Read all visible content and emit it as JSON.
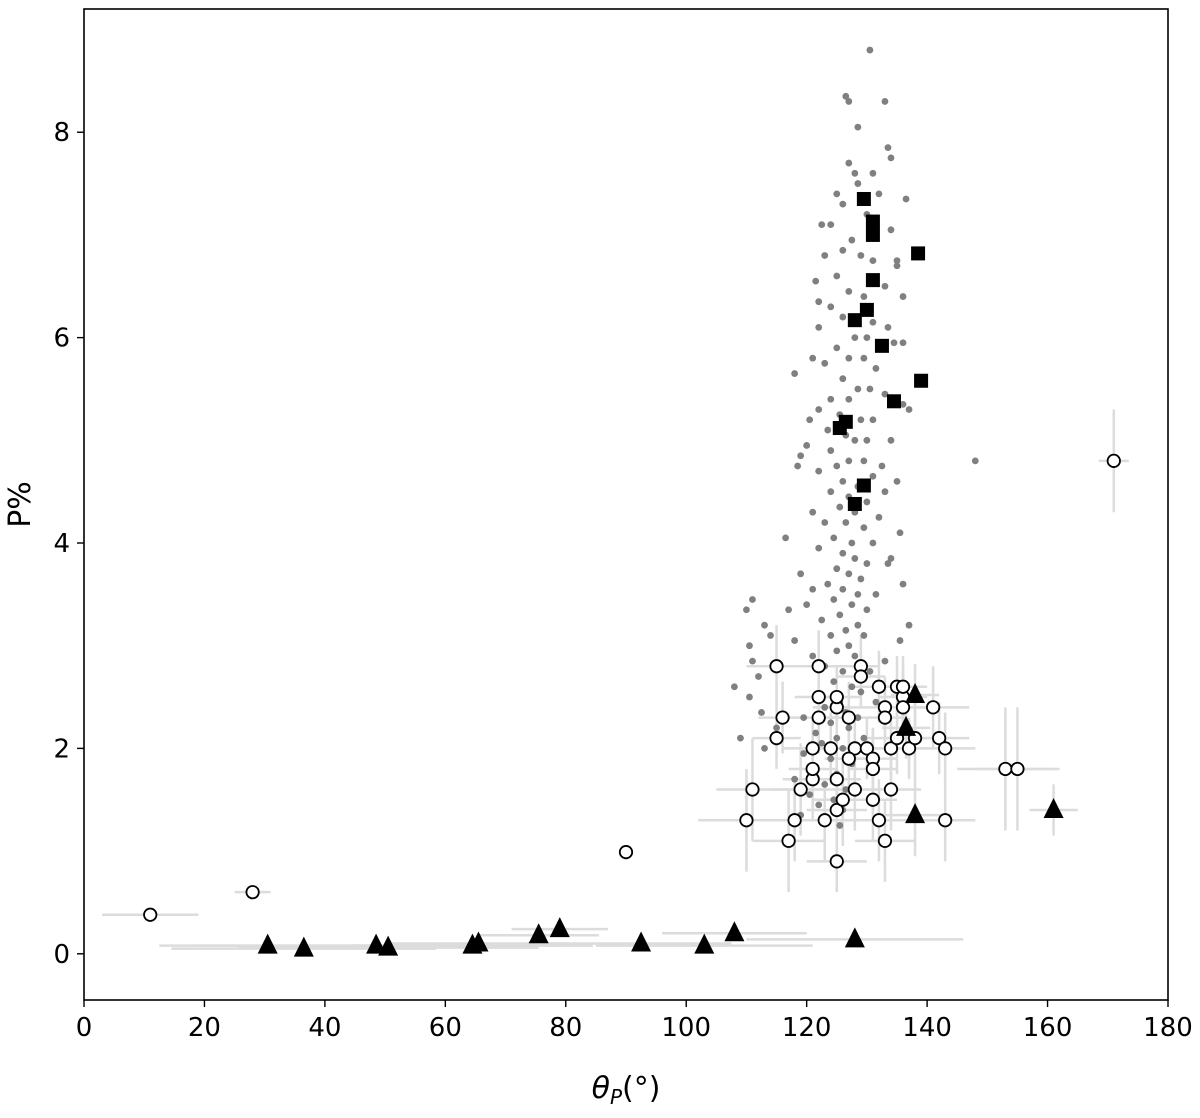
{
  "chart_data": {
    "type": "scatter",
    "title": "",
    "xlabel_main": "θ",
    "xlabel_sub": "P",
    "xlabel_tail": "(°)",
    "ylabel": "P%",
    "xlim": [
      0,
      180
    ],
    "ylim": [
      -0.45,
      9.2
    ],
    "xticks": [
      0,
      20,
      40,
      60,
      80,
      100,
      120,
      140,
      160,
      180
    ],
    "yticks": [
      0,
      2,
      4,
      6,
      8
    ],
    "grid": false,
    "colors": {
      "dots": "#808080",
      "errorbars": "#dcdcdc",
      "markers": "#000000"
    },
    "series": [
      {
        "marker": "dot",
        "points": [
          [
            130.5,
            8.8
          ],
          [
            126.5,
            8.35
          ],
          [
            127,
            8.3
          ],
          [
            133,
            8.3
          ],
          [
            128.5,
            8.05
          ],
          [
            133.5,
            7.85
          ],
          [
            134,
            7.75
          ],
          [
            127,
            7.7
          ],
          [
            131,
            7.6
          ],
          [
            128,
            7.6
          ],
          [
            128.5,
            7.5
          ],
          [
            125,
            7.4
          ],
          [
            132,
            7.4
          ],
          [
            136.5,
            7.35
          ],
          [
            126,
            7.3
          ],
          [
            130,
            7.2
          ],
          [
            124,
            7.1
          ],
          [
            134,
            7.05
          ],
          [
            122.5,
            7.1
          ],
          [
            127.5,
            6.95
          ],
          [
            126,
            6.85
          ],
          [
            129,
            6.8
          ],
          [
            131,
            6.75
          ],
          [
            135,
            6.7
          ],
          [
            125,
            6.6
          ],
          [
            133,
            6.5
          ],
          [
            127,
            6.45
          ],
          [
            129.5,
            6.4
          ],
          [
            136,
            6.4
          ],
          [
            124,
            6.3
          ],
          [
            126,
            6.2
          ],
          [
            131,
            6.15
          ],
          [
            133.5,
            6.1
          ],
          [
            122,
            6.1
          ],
          [
            128,
            6.0
          ],
          [
            130,
            6.0
          ],
          [
            134.5,
            5.95
          ],
          [
            125,
            5.9
          ],
          [
            127,
            5.8
          ],
          [
            129.5,
            5.8
          ],
          [
            121,
            5.8
          ],
          [
            123,
            5.75
          ],
          [
            131.5,
            5.7
          ],
          [
            118,
            5.65
          ],
          [
            126,
            5.6
          ],
          [
            128.5,
            5.5
          ],
          [
            130.5,
            5.5
          ],
          [
            133,
            5.45
          ],
          [
            124,
            5.4
          ],
          [
            127,
            5.4
          ],
          [
            136,
            5.35
          ],
          [
            122,
            5.3
          ],
          [
            125.5,
            5.25
          ],
          [
            129,
            5.2
          ],
          [
            131,
            5.2
          ],
          [
            123.5,
            5.1
          ],
          [
            126.5,
            5.05
          ],
          [
            128,
            5.0
          ],
          [
            130,
            5.0
          ],
          [
            134,
            5.0
          ],
          [
            120,
            4.95
          ],
          [
            124,
            4.9
          ],
          [
            119,
            4.85
          ],
          [
            127,
            4.8
          ],
          [
            129.5,
            4.8
          ],
          [
            125,
            4.75
          ],
          [
            122,
            4.7
          ],
          [
            131,
            4.65
          ],
          [
            126,
            4.6
          ],
          [
            128.5,
            4.55
          ],
          [
            133,
            4.5
          ],
          [
            124,
            4.5
          ],
          [
            127,
            4.45
          ],
          [
            130,
            4.4
          ],
          [
            125.5,
            4.35
          ],
          [
            121,
            4.3
          ],
          [
            128,
            4.3
          ],
          [
            132,
            4.25
          ],
          [
            123,
            4.2
          ],
          [
            126.5,
            4.2
          ],
          [
            129.5,
            4.15
          ],
          [
            135.5,
            4.1
          ],
          [
            124.5,
            4.05
          ],
          [
            127.5,
            4.0
          ],
          [
            131,
            4.0
          ],
          [
            122,
            3.95
          ],
          [
            126,
            3.9
          ],
          [
            128,
            3.85
          ],
          [
            130,
            3.8
          ],
          [
            133.5,
            3.8
          ],
          [
            116.5,
            4.05
          ],
          [
            125,
            3.75
          ],
          [
            127,
            3.7
          ],
          [
            129,
            3.65
          ],
          [
            123.5,
            3.6
          ],
          [
            126,
            3.55
          ],
          [
            128.5,
            3.5
          ],
          [
            131.5,
            3.5
          ],
          [
            124.5,
            3.45
          ],
          [
            120,
            3.4
          ],
          [
            127.5,
            3.4
          ],
          [
            130,
            3.35
          ],
          [
            125.5,
            3.3
          ],
          [
            122.5,
            3.25
          ],
          [
            128.5,
            3.2
          ],
          [
            126.5,
            3.15
          ],
          [
            124,
            3.1
          ],
          [
            129.5,
            3.1
          ],
          [
            118,
            3.05
          ],
          [
            127,
            3.0
          ],
          [
            125,
            2.95
          ],
          [
            121,
            2.9
          ],
          [
            128,
            2.9
          ],
          [
            133,
            2.85
          ],
          [
            123,
            2.8
          ],
          [
            126,
            2.75
          ],
          [
            130.5,
            2.75
          ],
          [
            112,
            2.7
          ],
          [
            111,
            2.85
          ],
          [
            110.5,
            3.0
          ],
          [
            113,
            3.2
          ],
          [
            110,
            3.35
          ],
          [
            111,
            3.45
          ],
          [
            114,
            3.1
          ],
          [
            124.5,
            2.65
          ],
          [
            127.5,
            2.6
          ],
          [
            129,
            2.55
          ],
          [
            121.5,
            2.5
          ],
          [
            125.5,
            2.45
          ],
          [
            131.5,
            2.45
          ],
          [
            123,
            2.4
          ],
          [
            126.5,
            2.35
          ],
          [
            128.5,
            2.3
          ],
          [
            119.5,
            2.3
          ],
          [
            124,
            2.25
          ],
          [
            127,
            2.2
          ],
          [
            115,
            2.2
          ],
          [
            121.5,
            2.15
          ],
          [
            125,
            2.1
          ],
          [
            129.5,
            2.1
          ],
          [
            122.5,
            2.05
          ],
          [
            126,
            2.0
          ],
          [
            119.5,
            1.95
          ],
          [
            124,
            1.9
          ],
          [
            127.5,
            1.85
          ],
          [
            121,
            1.8
          ],
          [
            125,
            1.75
          ],
          [
            118,
            1.7
          ],
          [
            123,
            1.65
          ],
          [
            126.5,
            1.6
          ],
          [
            120.5,
            1.55
          ],
          [
            124.5,
            1.5
          ],
          [
            122,
            1.45
          ],
          [
            126,
            1.4
          ],
          [
            119,
            1.35
          ],
          [
            123,
            1.3
          ],
          [
            125.5,
            1.25
          ],
          [
            148,
            4.8
          ],
          [
            137,
            5.3
          ],
          [
            136,
            5.95
          ],
          [
            135,
            4.6
          ],
          [
            132.5,
            4.75
          ],
          [
            134,
            3.85
          ],
          [
            136,
            3.6
          ],
          [
            137,
            3.2
          ],
          [
            135.5,
            3.05
          ],
          [
            121,
            3.55
          ],
          [
            119,
            3.7
          ],
          [
            117,
            3.35
          ],
          [
            112.5,
            2.35
          ],
          [
            109,
            2.1
          ],
          [
            108,
            2.6
          ],
          [
            110.5,
            2.5
          ],
          [
            113,
            2.0
          ],
          [
            122,
            6.35
          ],
          [
            123,
            6.8
          ],
          [
            121.5,
            6.55
          ],
          [
            120.5,
            5.2
          ],
          [
            118.5,
            4.75
          ],
          [
            135,
            6.75
          ]
        ]
      },
      {
        "marker": "open-circle",
        "points": [
          [
            11,
            0.38,
            8,
            0
          ],
          [
            28,
            0.6,
            3,
            0
          ],
          [
            90,
            0.99,
            0,
            0
          ],
          [
            171,
            4.8,
            2.5,
            0.5
          ],
          [
            115,
            2.8,
            5,
            0.4
          ],
          [
            116,
            2.3,
            4,
            0.35
          ],
          [
            115,
            2.1,
            4,
            0.3
          ],
          [
            121,
            2.0,
            5,
            0.3
          ],
          [
            122,
            2.8,
            4,
            0.35
          ],
          [
            122,
            2.5,
            4,
            0.3
          ],
          [
            122,
            2.3,
            5,
            0.35
          ],
          [
            125,
            2.4,
            4,
            0.3
          ],
          [
            125,
            2.5,
            4,
            0.3
          ],
          [
            124,
            2.0,
            5,
            0.35
          ],
          [
            127,
            2.3,
            5,
            0.35
          ],
          [
            128,
            2.0,
            4,
            0.3
          ],
          [
            129,
            2.8,
            3,
            0.3
          ],
          [
            129,
            2.7,
            4,
            0.3
          ],
          [
            130,
            2.0,
            3,
            0.3
          ],
          [
            131,
            1.9,
            4,
            0.3
          ],
          [
            132,
            2.6,
            5,
            0.35
          ],
          [
            133,
            2.4,
            4,
            0.3
          ],
          [
            133,
            2.3,
            3,
            0.3
          ],
          [
            134,
            2.0,
            4,
            0.3
          ],
          [
            135,
            2.1,
            5,
            0.35
          ],
          [
            135,
            2.6,
            4,
            0.3
          ],
          [
            136,
            2.5,
            4,
            0.3
          ],
          [
            136,
            2.4,
            4,
            0.3
          ],
          [
            136,
            2.6,
            4,
            0.3
          ],
          [
            137,
            2.0,
            4,
            0.3
          ],
          [
            138,
            2.1,
            5,
            0.35
          ],
          [
            141,
            2.4,
            6,
            0.4
          ],
          [
            142,
            2.1,
            5,
            0.35
          ],
          [
            143,
            2.0,
            5,
            0.35
          ],
          [
            111,
            1.6,
            6,
            0.5
          ],
          [
            110,
            1.3,
            8,
            0.5
          ],
          [
            117,
            1.1,
            6,
            0.5
          ],
          [
            118,
            1.3,
            6,
            0.4
          ],
          [
            119,
            1.6,
            5,
            0.45
          ],
          [
            121,
            1.7,
            5,
            0.4
          ],
          [
            121,
            1.8,
            4,
            0.4
          ],
          [
            123,
            1.3,
            5,
            0.4
          ],
          [
            125,
            1.4,
            5,
            0.4
          ],
          [
            125,
            1.7,
            4,
            0.4
          ],
          [
            126,
            1.5,
            5,
            0.45
          ],
          [
            127,
            1.9,
            4,
            0.35
          ],
          [
            128,
            1.6,
            4,
            0.4
          ],
          [
            131,
            1.5,
            4,
            0.4
          ],
          [
            131,
            1.8,
            4,
            0.4
          ],
          [
            132,
            1.3,
            5,
            0.4
          ],
          [
            133,
            1.1,
            5,
            0.4
          ],
          [
            134,
            1.6,
            5,
            0.4
          ],
          [
            143,
            1.3,
            5,
            0.4
          ],
          [
            125,
            0.9,
            5,
            0.3
          ],
          [
            153,
            1.8,
            8,
            0.6
          ],
          [
            155,
            1.8,
            7,
            0.6
          ]
        ]
      },
      {
        "marker": "filled-triangle",
        "points": [
          [
            30.5,
            0.08,
            18,
            0
          ],
          [
            36.5,
            0.05,
            22,
            0
          ],
          [
            48.5,
            0.08,
            30,
            0
          ],
          [
            50.5,
            0.06,
            25,
            0
          ],
          [
            64.5,
            0.08,
            20,
            0
          ],
          [
            65.5,
            0.1,
            15,
            0
          ],
          [
            75.5,
            0.18,
            10,
            0
          ],
          [
            79,
            0.24,
            8,
            0
          ],
          [
            92.5,
            0.1,
            15,
            0
          ],
          [
            103,
            0.08,
            18,
            0
          ],
          [
            108,
            0.2,
            12,
            0
          ],
          [
            128,
            0.14,
            18,
            0
          ],
          [
            138,
            2.52,
            4,
            0.3
          ],
          [
            136.5,
            2.2,
            4,
            0.3
          ],
          [
            138,
            1.35,
            6,
            0.4
          ],
          [
            161,
            1.4,
            4,
            0.25
          ]
        ]
      },
      {
        "marker": "filled-square",
        "points": [
          [
            129.5,
            7.35
          ],
          [
            131,
            7.13
          ],
          [
            131,
            7.0
          ],
          [
            138.5,
            6.82
          ],
          [
            131,
            6.56
          ],
          [
            130,
            6.27
          ],
          [
            128,
            6.17
          ],
          [
            132.5,
            5.92
          ],
          [
            139,
            5.58
          ],
          [
            134.5,
            5.38
          ],
          [
            126.5,
            5.18
          ],
          [
            125.5,
            5.12
          ],
          [
            129.5,
            4.56
          ],
          [
            128,
            4.38
          ]
        ]
      }
    ]
  }
}
